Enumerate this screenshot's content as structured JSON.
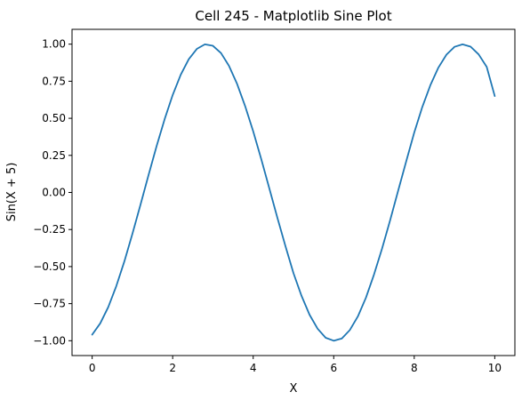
{
  "chart_data": {
    "type": "line",
    "title": "Cell 245 - Matplotlib Sine Plot",
    "xlabel": "X",
    "ylabel": "Sin(X + 5)",
    "xlim": [
      -0.5,
      10.5
    ],
    "ylim": [
      -1.1,
      1.1
    ],
    "xticks": [
      0,
      2,
      4,
      6,
      8,
      10
    ],
    "xtick_labels": [
      "0",
      "2",
      "4",
      "6",
      "8",
      "10"
    ],
    "yticks": [
      -1.0,
      -0.75,
      -0.5,
      -0.25,
      0.0,
      0.25,
      0.5,
      0.75,
      1.0
    ],
    "ytick_labels": [
      "−1.00",
      "−0.75",
      "−0.50",
      "−0.25",
      "0.00",
      "0.25",
      "0.50",
      "0.75",
      "1.00"
    ],
    "grid": false,
    "line_color": "#1f77b4",
    "series": [
      {
        "x": [
          0.0,
          0.2,
          0.4,
          0.6,
          0.8,
          1.0,
          1.2,
          1.4,
          1.6,
          1.8,
          2.0,
          2.2,
          2.4,
          2.6,
          2.8,
          3.0,
          3.2,
          3.4,
          3.6,
          3.8,
          4.0,
          4.2,
          4.4,
          4.6,
          4.8,
          5.0,
          5.2,
          5.4,
          5.6,
          5.8,
          6.0,
          6.2,
          6.4,
          6.6,
          6.8,
          7.0,
          7.2,
          7.4,
          7.6,
          7.8,
          8.0,
          8.2,
          8.4,
          8.6,
          8.8,
          9.0,
          9.2,
          9.4,
          9.6,
          9.8,
          10.0
        ],
        "y": [
          -0.959,
          -0.883,
          -0.773,
          -0.631,
          -0.465,
          -0.279,
          -0.083,
          0.117,
          0.312,
          0.494,
          0.657,
          0.794,
          0.899,
          0.968,
          0.999,
          0.989,
          0.94,
          0.853,
          0.732,
          0.582,
          0.412,
          0.225,
          0.028,
          -0.17,
          -0.361,
          -0.544,
          -0.697,
          -0.825,
          -0.919,
          -0.98,
          -1.0,
          -0.985,
          -0.928,
          -0.836,
          -0.71,
          -0.554,
          -0.379,
          -0.189,
          0.011,
          0.209,
          0.404,
          0.576,
          0.723,
          0.842,
          0.929,
          0.982,
          0.999,
          0.983,
          0.931,
          0.847,
          0.65
        ]
      }
    ]
  }
}
